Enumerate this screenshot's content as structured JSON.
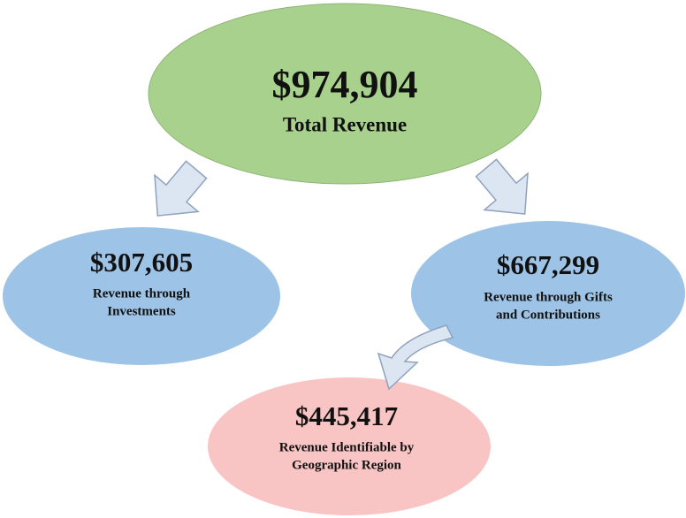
{
  "nodes": [
    {
      "amount": "$974,904",
      "label": [
        "Total Revenue"
      ]
    },
    {
      "amount": "$307,605",
      "label": [
        "Revenue through",
        "Investments"
      ]
    },
    {
      "amount": "$667,299",
      "label": [
        "Revenue through Gifts",
        "and Contributions"
      ]
    },
    {
      "amount": "$445,417",
      "label": [
        "Revenue Identifiable by",
        "Geographic Region"
      ]
    }
  ]
}
